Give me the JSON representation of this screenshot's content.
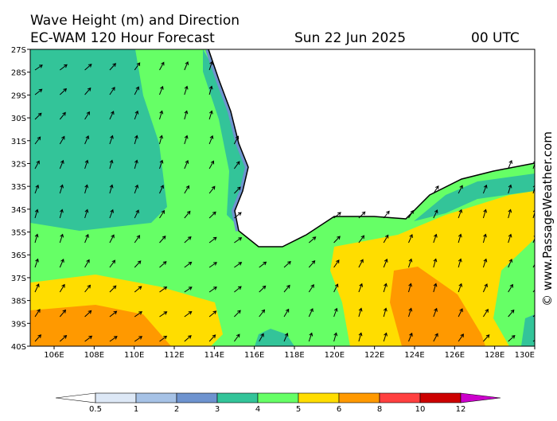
{
  "header": {
    "title": "Wave Height (m) and Direction",
    "subtitle": "EC-WAM 120 Hour Forecast",
    "date": "Sun 22 Jun 2025",
    "time": "00 UTC"
  },
  "map": {
    "lat_labels": [
      "27S",
      "28S",
      "29S",
      "30S",
      "31S",
      "32S",
      "33S",
      "34S",
      "35S",
      "36S",
      "37S",
      "38S",
      "39S",
      "40S"
    ],
    "lon_labels": [
      "106E",
      "108E",
      "110E",
      "112E",
      "114E",
      "116E",
      "118E",
      "120E",
      "122E",
      "124E",
      "126E",
      "128E",
      "130E"
    ]
  },
  "legend": {
    "labels": [
      "0.5",
      "1",
      "2",
      "3",
      "4",
      "5",
      "6",
      "8",
      "10",
      "12"
    ],
    "colors": [
      "#ffffff",
      "#dde8f6",
      "#a6c2e6",
      "#6e93cf",
      "#33c499",
      "#66ff66",
      "#ffdd00",
      "#ff9900",
      "#ff4040",
      "#cc0000",
      "#cc00cc"
    ]
  },
  "credit": "© www.PassageWeather.com"
}
